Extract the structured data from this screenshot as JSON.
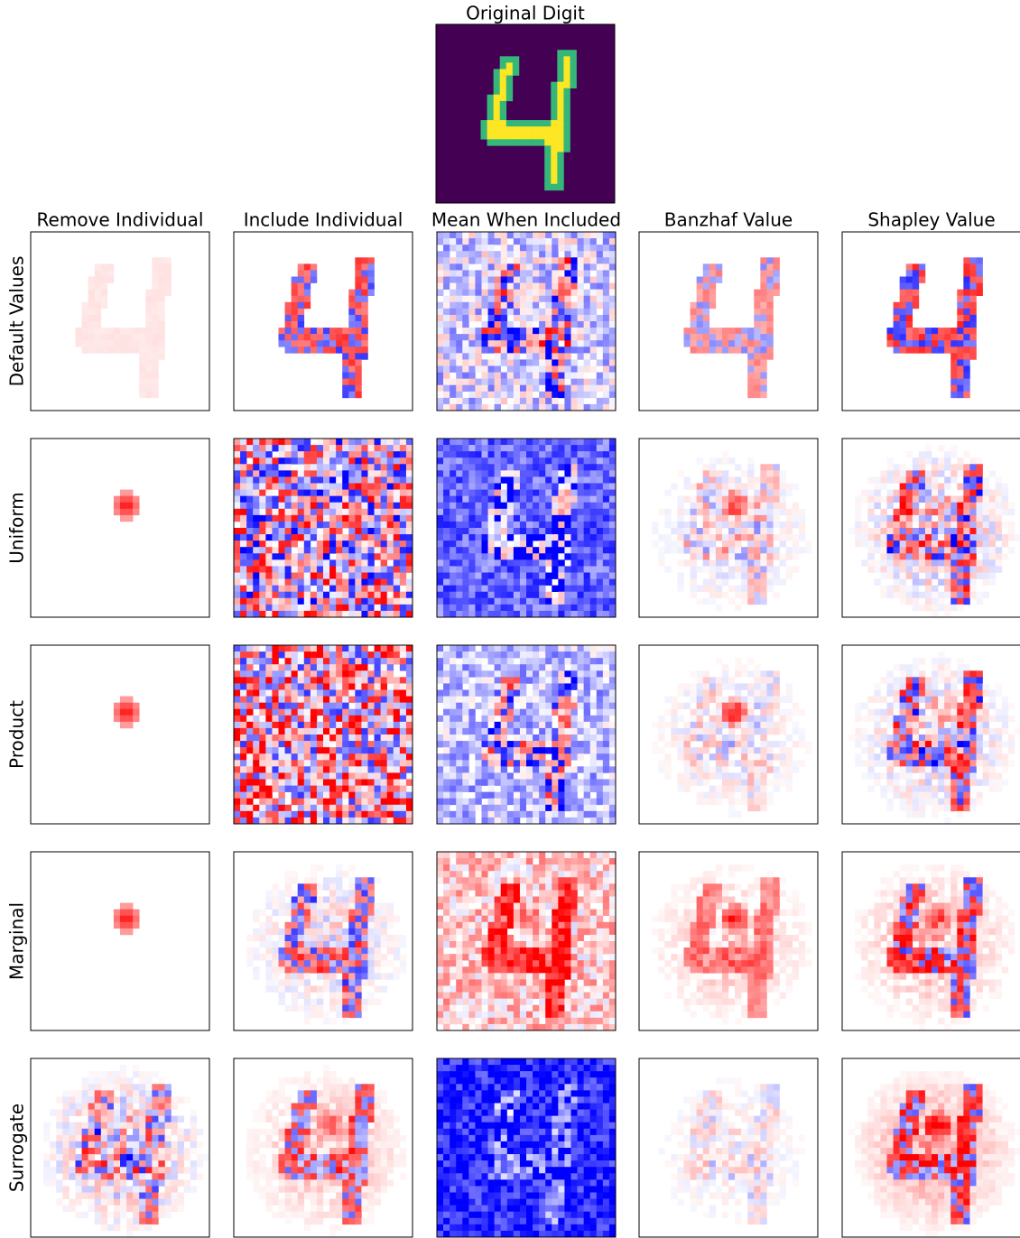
{
  "figure": {
    "title": "Original Digit",
    "columns": [
      "Remove Individual",
      "Include Individual",
      "Mean When Included",
      "Banzhaf Value",
      "Shapley Value"
    ],
    "rows": [
      "Default Values",
      "Uniform",
      "Product",
      "Marginal",
      "Surrogate"
    ]
  }
}
